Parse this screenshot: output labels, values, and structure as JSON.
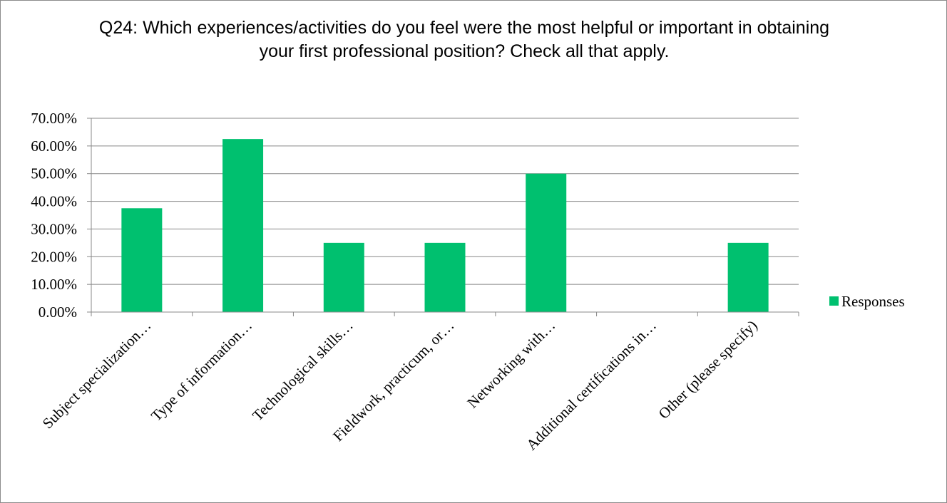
{
  "chart_data": {
    "type": "bar",
    "title": "Q24: Which experiences/activities do you feel were the most helpful or important in obtaining your first professional position? Check all that apply.",
    "xlabel": "",
    "ylabel": "",
    "categories": [
      "Subject specialization…",
      "Type of information…",
      "Technological skills…",
      "Fieldwork, practicum, or…",
      "Networking with…",
      "Additional certifications in…",
      "Other (please specify)"
    ],
    "series": [
      {
        "name": "Responses",
        "values": [
          0.375,
          0.625,
          0.25,
          0.25,
          0.5,
          0.0,
          0.25
        ]
      }
    ],
    "ylim": [
      0,
      0.7
    ],
    "yticks": [
      0,
      0.1,
      0.2,
      0.3,
      0.4,
      0.5,
      0.6,
      0.7
    ],
    "ytick_labels": [
      "0.00%",
      "10.00%",
      "20.00%",
      "30.00%",
      "40.00%",
      "50.00%",
      "60.00%",
      "70.00%"
    ],
    "grid": true,
    "legend": "right",
    "colors": {
      "bar": "#00c06f",
      "grid": "#888888",
      "axis": "#888888"
    }
  }
}
